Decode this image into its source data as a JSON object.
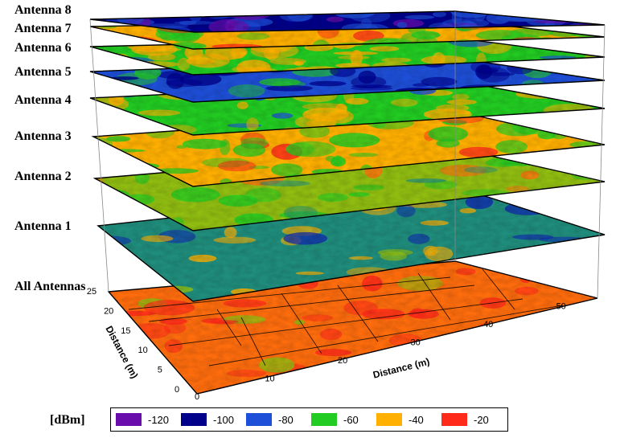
{
  "chart_data": {
    "type": "heatmap",
    "title": "",
    "layers": [
      {
        "name": "Antenna 8",
        "dominant_dbm": -100
      },
      {
        "name": "Antenna 7",
        "dominant_dbm": -40
      },
      {
        "name": "Antenna 6",
        "dominant_dbm": -60
      },
      {
        "name": "Antenna 5",
        "dominant_dbm": -80
      },
      {
        "name": "Antenna 4",
        "dominant_dbm": -60
      },
      {
        "name": "Antenna 3",
        "dominant_dbm": -40
      },
      {
        "name": "Antenna 2",
        "dominant_dbm": -50
      },
      {
        "name": "Antenna 1",
        "dominant_dbm": -70
      },
      {
        "name": "All Antennas",
        "dominant_dbm": -30
      }
    ],
    "x_axis": {
      "label": "Distance (m)",
      "ticks": [
        0,
        10,
        20,
        30,
        40,
        50
      ],
      "range": [
        0,
        55
      ]
    },
    "y_axis": {
      "label": "Distance (m)",
      "ticks": [
        0,
        5,
        10,
        15,
        20,
        25
      ],
      "range": [
        0,
        25
      ]
    },
    "legend": {
      "unit": "[dBm]",
      "entries": [
        {
          "value": "-120",
          "color": "#6a0dad"
        },
        {
          "value": "-100",
          "color": "#00008b"
        },
        {
          "value": "-80",
          "color": "#1e4fd8"
        },
        {
          "value": "-60",
          "color": "#22cc22"
        },
        {
          "value": "-40",
          "color": "#ffb000"
        },
        {
          "value": "-20",
          "color": "#ff2a1a"
        }
      ]
    }
  }
}
